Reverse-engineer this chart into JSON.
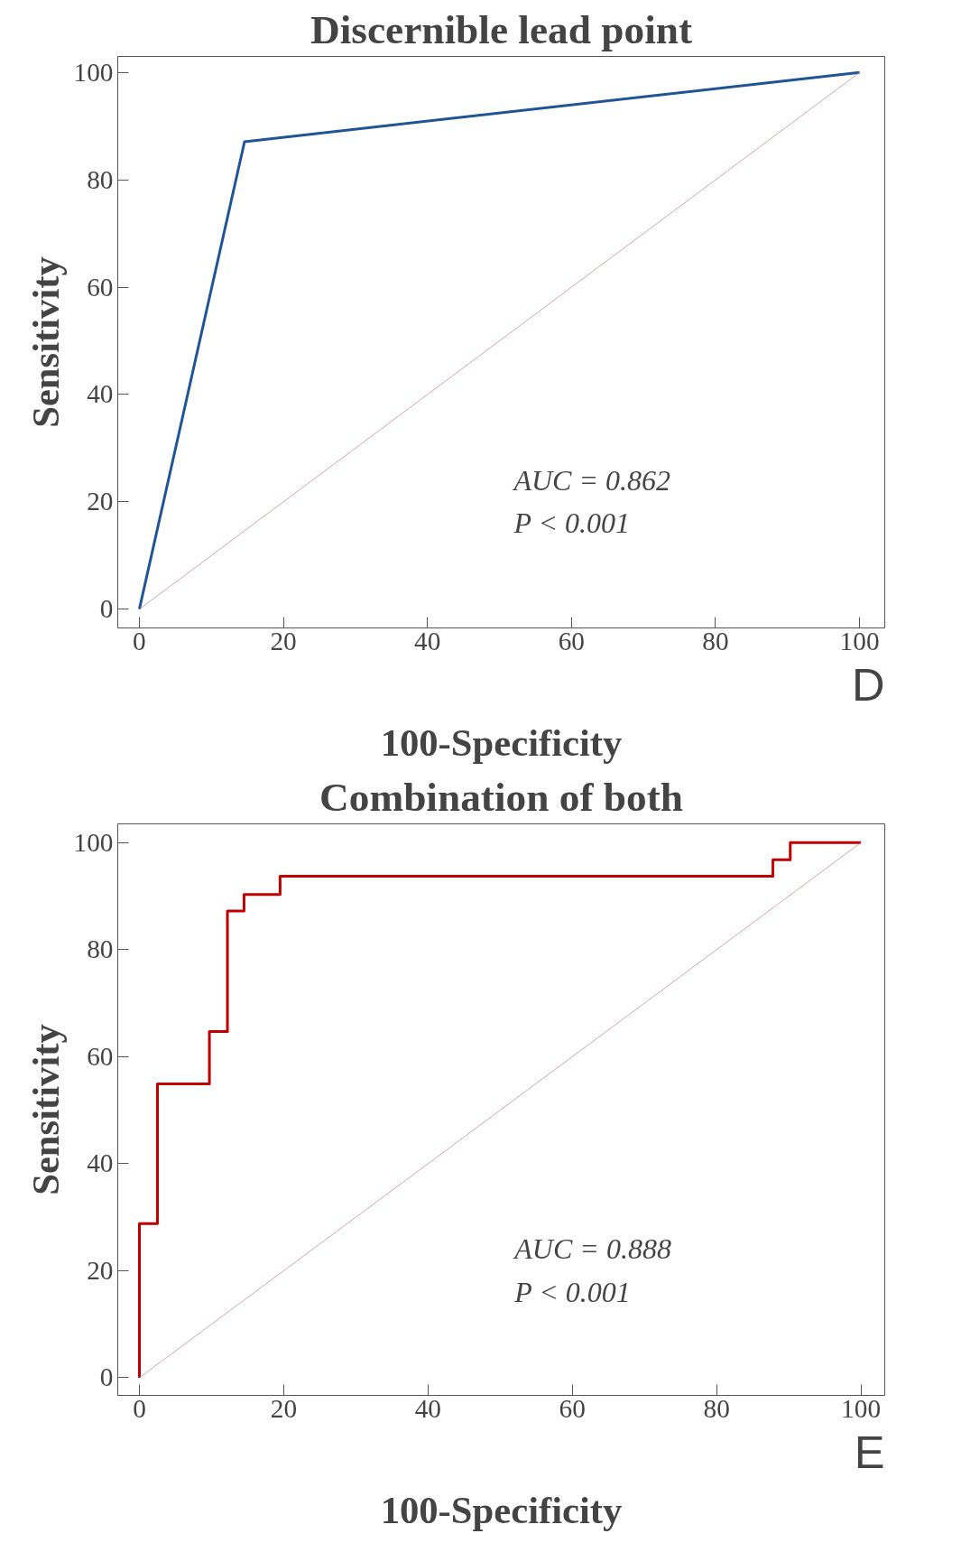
{
  "chart_data": [
    {
      "type": "line",
      "title": "Discernible lead point",
      "xlabel": "100-Specificity",
      "ylabel": "Sensitivity",
      "xlim": [
        -3,
        103.5
      ],
      "ylim": [
        -3.5,
        103
      ],
      "xticks": [
        0,
        20,
        40,
        60,
        80,
        100
      ],
      "yticks": [
        0,
        20,
        40,
        60,
        80,
        100
      ],
      "grid": false,
      "series": [
        {
          "color": "#1f5597",
          "x": [
            0,
            14.6,
            100
          ],
          "values": [
            0,
            87.1,
            100
          ]
        },
        {
          "color": "#c89090",
          "x": [
            0,
            100
          ],
          "values": [
            0,
            100
          ]
        }
      ],
      "annotations": [
        "AUC = 0.862",
        "P < 0.001",
        "D"
      ]
    },
    {
      "type": "line",
      "title": "Combination of both",
      "xlabel": "100-Specificity",
      "ylabel": "Sensitivity",
      "xlim": [
        -3,
        103.3
      ],
      "ylim": [
        -3.3,
        103.5
      ],
      "xticks": [
        0,
        20,
        40,
        60,
        80,
        100
      ],
      "yticks": [
        0,
        20,
        40,
        60,
        80,
        100
      ],
      "grid": false,
      "series": [
        {
          "color": "#c00000",
          "x": [
            0,
            0,
            2.5,
            2.5,
            9.7,
            9.7,
            12.2,
            12.2,
            14.5,
            14.5,
            19.5,
            19.5,
            87.8,
            87.8,
            90.2,
            90.2,
            100
          ],
          "values": [
            0,
            28.8,
            28.8,
            54.9,
            54.9,
            64.7,
            64.7,
            87.2,
            87.2,
            90.3,
            90.3,
            93.7,
            93.7,
            96.8,
            96.8,
            100,
            100
          ]
        },
        {
          "color": "#c89090",
          "x": [
            0,
            100
          ],
          "values": [
            0,
            100
          ]
        }
      ],
      "annotations": [
        "AUC = 0.888",
        "P < 0.001",
        "E"
      ]
    }
  ]
}
